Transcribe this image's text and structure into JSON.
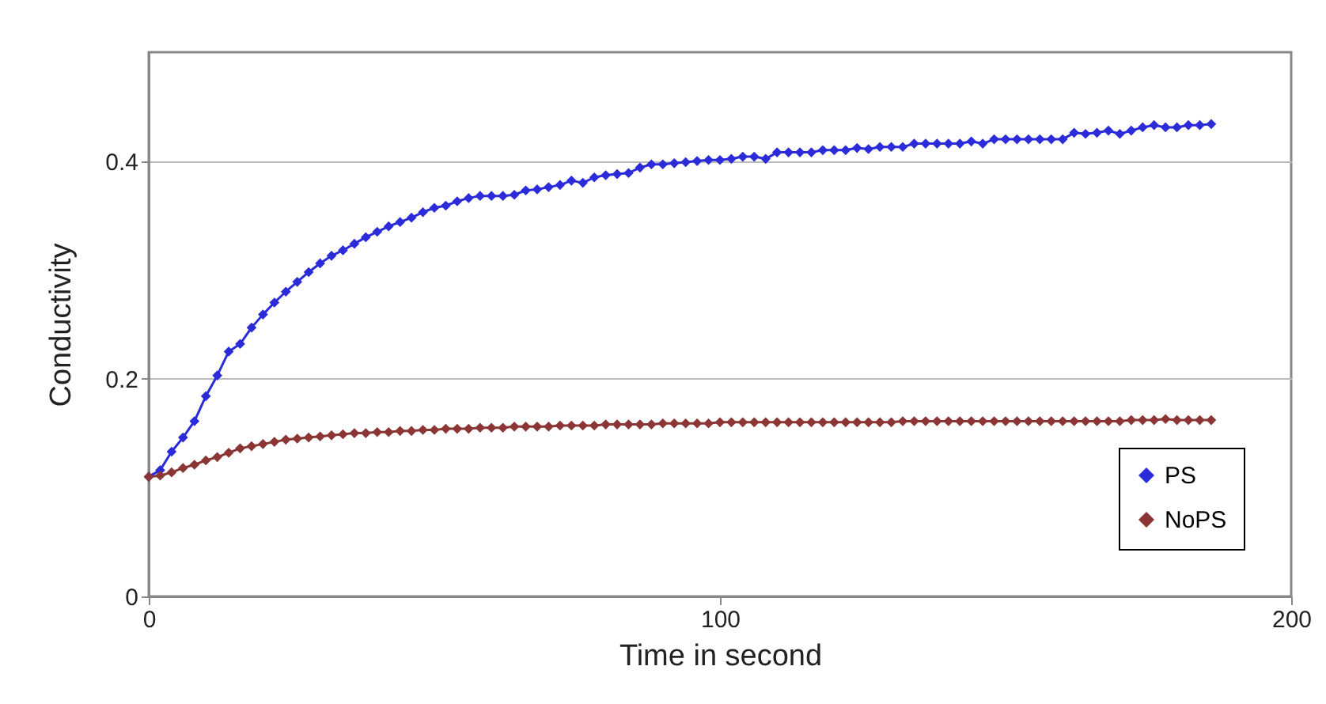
{
  "chart_data": {
    "type": "line",
    "xlabel": "Time in second",
    "ylabel": "Conductivity",
    "x": [
      0,
      2,
      4,
      6,
      8,
      10,
      12,
      14,
      16,
      18,
      20,
      22,
      24,
      26,
      28,
      30,
      32,
      34,
      36,
      38,
      40,
      42,
      44,
      46,
      48,
      50,
      52,
      54,
      56,
      58,
      60,
      62,
      64,
      66,
      68,
      70,
      72,
      74,
      76,
      78,
      80,
      82,
      84,
      86,
      88,
      90,
      92,
      94,
      96,
      98,
      100,
      102,
      104,
      106,
      108,
      110,
      112,
      114,
      116,
      118,
      120,
      122,
      124,
      126,
      128,
      130,
      132,
      134,
      136,
      138,
      140,
      142,
      144,
      146,
      148,
      150,
      152,
      154,
      156,
      158,
      160,
      162,
      164,
      166,
      168,
      170,
      172,
      174,
      176,
      178,
      180,
      182,
      184,
      186
    ],
    "series": [
      {
        "name": "PS",
        "color": "#2b2bd9",
        "values": [
          0.11,
          0.116,
          0.133,
          0.146,
          0.161,
          0.184,
          0.203,
          0.225,
          0.232,
          0.247,
          0.259,
          0.27,
          0.28,
          0.289,
          0.298,
          0.306,
          0.313,
          0.318,
          0.324,
          0.33,
          0.335,
          0.34,
          0.344,
          0.348,
          0.353,
          0.357,
          0.359,
          0.363,
          0.366,
          0.368,
          0.368,
          0.368,
          0.369,
          0.373,
          0.374,
          0.376,
          0.378,
          0.382,
          0.38,
          0.385,
          0.387,
          0.388,
          0.389,
          0.394,
          0.397,
          0.397,
          0.398,
          0.399,
          0.4,
          0.401,
          0.401,
          0.402,
          0.404,
          0.404,
          0.402,
          0.408,
          0.408,
          0.408,
          0.408,
          0.41,
          0.41,
          0.41,
          0.412,
          0.411,
          0.413,
          0.413,
          0.413,
          0.416,
          0.416,
          0.416,
          0.416,
          0.416,
          0.418,
          0.416,
          0.42,
          0.42,
          0.42,
          0.42,
          0.42,
          0.42,
          0.42,
          0.426,
          0.425,
          0.426,
          0.428,
          0.425,
          0.428,
          0.431,
          0.433,
          0.431,
          0.431,
          0.433,
          0.433,
          0.434
        ]
      },
      {
        "name": "NoPS",
        "color": "#8b3535",
        "values": [
          0.11,
          0.111,
          0.114,
          0.118,
          0.121,
          0.125,
          0.128,
          0.132,
          0.136,
          0.138,
          0.14,
          0.142,
          0.144,
          0.145,
          0.146,
          0.147,
          0.148,
          0.149,
          0.15,
          0.15,
          0.151,
          0.151,
          0.152,
          0.152,
          0.153,
          0.153,
          0.154,
          0.154,
          0.154,
          0.155,
          0.155,
          0.155,
          0.156,
          0.156,
          0.156,
          0.156,
          0.157,
          0.157,
          0.157,
          0.157,
          0.158,
          0.158,
          0.158,
          0.158,
          0.158,
          0.159,
          0.159,
          0.159,
          0.159,
          0.159,
          0.16,
          0.16,
          0.16,
          0.16,
          0.16,
          0.16,
          0.16,
          0.16,
          0.16,
          0.16,
          0.16,
          0.16,
          0.16,
          0.16,
          0.16,
          0.16,
          0.161,
          0.161,
          0.161,
          0.161,
          0.161,
          0.161,
          0.161,
          0.161,
          0.161,
          0.161,
          0.161,
          0.161,
          0.161,
          0.161,
          0.161,
          0.161,
          0.161,
          0.161,
          0.161,
          0.161,
          0.162,
          0.162,
          0.162,
          0.163,
          0.162,
          0.162,
          0.162,
          0.162
        ]
      }
    ],
    "xlim": [
      0,
      200
    ],
    "xticks": [
      0,
      100,
      200
    ],
    "ylim": [
      0,
      0.5
    ],
    "yticks": [
      0,
      0.2,
      0.4
    ],
    "grid": "y",
    "legend": "bottom right",
    "marker": "diamond",
    "line_style": "solid"
  }
}
